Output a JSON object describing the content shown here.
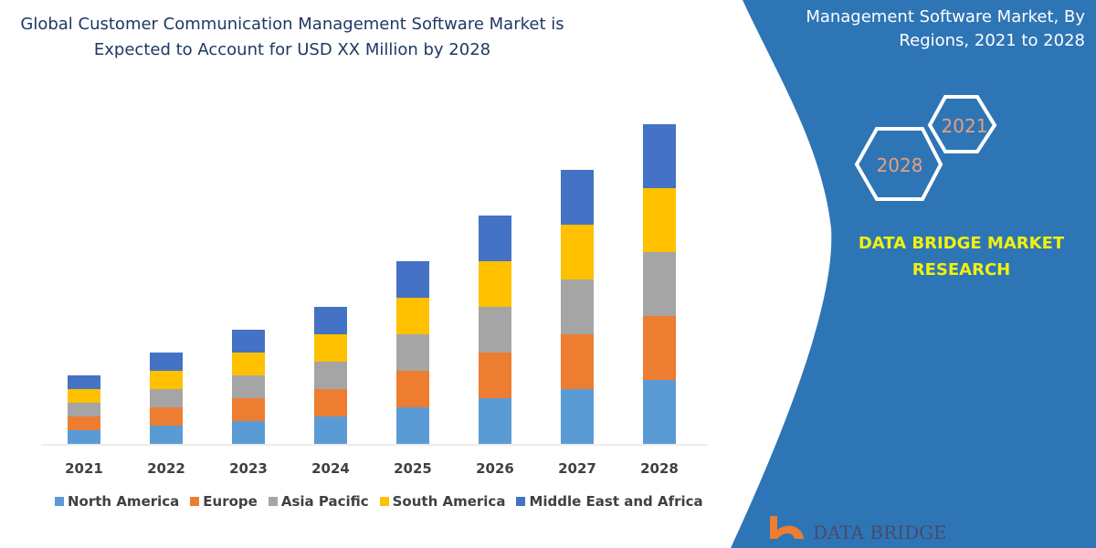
{
  "header": {
    "title_line1": "Global Customer Communication Management Software Market is",
    "title_line2": "Expected to Account for USD XX Million by 2028"
  },
  "side_panel": {
    "title_line1": "Management Software Market, By",
    "title_line2": "Regions, 2021 to 2028",
    "hex_start": "2021",
    "hex_end": "2028",
    "brand_line1": "DATA BRIDGE MARKET",
    "brand_line2": "RESEARCH",
    "logo_text": "DATA BRIDGE",
    "panel_color": "#2e75b6",
    "brand_color": "#f2f20a"
  },
  "chart_data": {
    "type": "bar",
    "stacked": true,
    "categories": [
      "2021",
      "2022",
      "2023",
      "2024",
      "2025",
      "2026",
      "2027",
      "2028"
    ],
    "series": [
      {
        "name": "North America",
        "color": "#5b9bd5",
        "values": [
          15,
          20,
          25,
          30,
          40,
          50,
          60,
          70
        ]
      },
      {
        "name": "Europe",
        "color": "#ed7d31",
        "values": [
          15,
          20,
          25,
          30,
          40,
          50,
          60,
          70
        ]
      },
      {
        "name": "Asia Pacific",
        "color": "#a5a5a5",
        "values": [
          15,
          20,
          25,
          30,
          40,
          50,
          60,
          70
        ]
      },
      {
        "name": "South America",
        "color": "#ffc000",
        "values": [
          15,
          20,
          25,
          30,
          40,
          50,
          60,
          70
        ]
      },
      {
        "name": "Middle East and Africa",
        "color": "#4472c4",
        "values": [
          15,
          20,
          25,
          30,
          40,
          50,
          60,
          70
        ]
      }
    ],
    "y_axis_shown": false,
    "grid": false,
    "legend": "bottom"
  }
}
